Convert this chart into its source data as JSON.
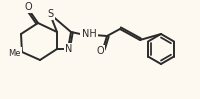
{
  "bg_color": "#fdf8f0",
  "bond_color": "#2a2a2a",
  "line_width": 1.4,
  "font_size": 7,
  "atoms": {
    "S_label": "S",
    "N_label": "N",
    "NH_label": "NH",
    "O1_label": "O",
    "O2_label": "O",
    "Me_label": "Me"
  }
}
